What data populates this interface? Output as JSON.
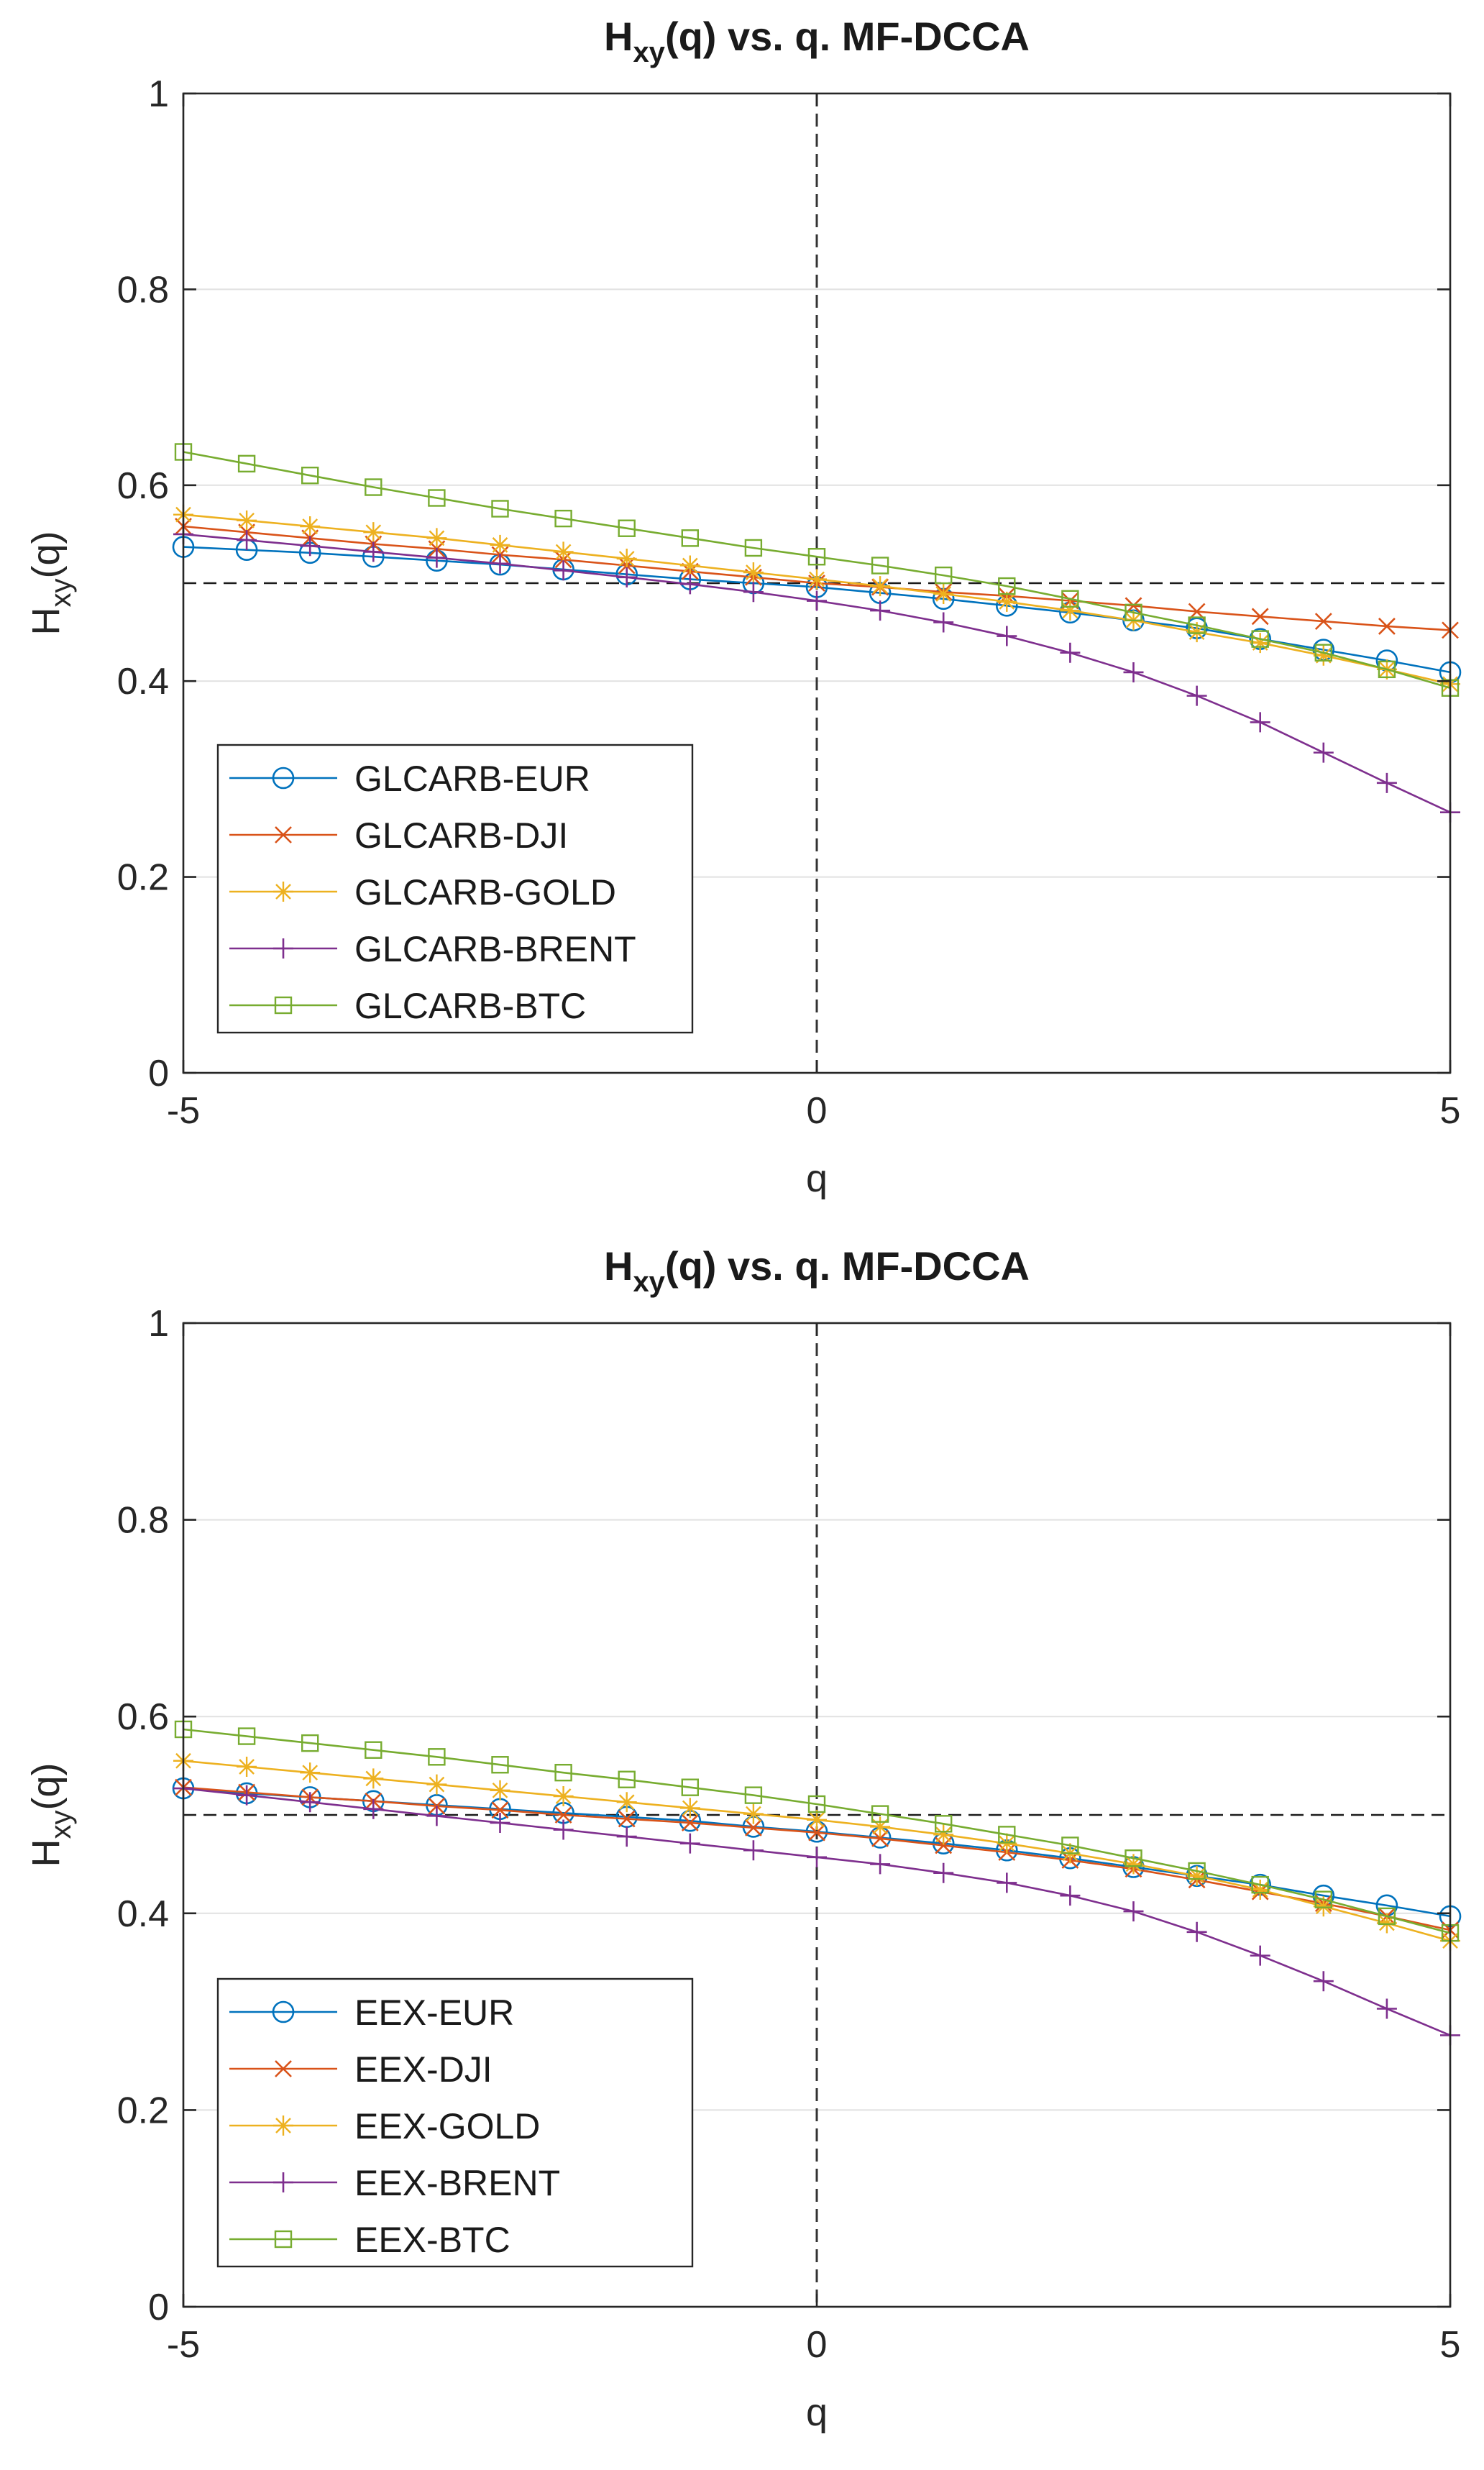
{
  "chart_data": [
    {
      "type": "line",
      "title_main": "H",
      "title_sub": "xy",
      "title_rest": "(q) vs. q. MF-DCCA",
      "xlabel": "q",
      "ylabel_main": "H",
      "ylabel_sub": "xy",
      "ylabel_rest": "(q)",
      "xlim": [
        -5,
        5
      ],
      "ylim": [
        0,
        1
      ],
      "xticks": [
        -5,
        0,
        5
      ],
      "yticks": [
        0,
        0.2,
        0.4,
        0.6,
        0.8,
        1
      ],
      "xtick_labels": [
        "-5",
        "0",
        "5"
      ],
      "ytick_labels": [
        "0",
        "0.2",
        "0.4",
        "0.6",
        "0.8",
        "1"
      ],
      "grid": "horizontal",
      "reference_lines": {
        "vertical_x": 0,
        "horizontal_y": 0.5
      },
      "legend_position": "lower-left",
      "x": [
        -5,
        -4.5,
        -4,
        -3.5,
        -3,
        -2.5,
        -2,
        -1.5,
        -1,
        -0.5,
        0,
        0.5,
        1,
        1.5,
        2,
        2.5,
        3,
        3.5,
        4,
        4.5,
        5
      ],
      "series": [
        {
          "name": "GLCARB-EUR",
          "color": "#0072BD",
          "marker": "circle",
          "values": [
            0.537,
            0.534,
            0.531,
            0.527,
            0.523,
            0.519,
            0.514,
            0.509,
            0.504,
            0.5,
            0.496,
            0.49,
            0.484,
            0.477,
            0.47,
            0.462,
            0.454,
            0.443,
            0.432,
            0.421,
            0.409
          ]
        },
        {
          "name": "GLCARB-DJI",
          "color": "#D95319",
          "marker": "x",
          "values": [
            0.558,
            0.552,
            0.546,
            0.54,
            0.535,
            0.529,
            0.524,
            0.518,
            0.512,
            0.506,
            0.5,
            0.496,
            0.491,
            0.487,
            0.482,
            0.477,
            0.471,
            0.466,
            0.461,
            0.456,
            0.452
          ]
        },
        {
          "name": "GLCARB-GOLD",
          "color": "#EDB120",
          "marker": "star",
          "values": [
            0.57,
            0.564,
            0.558,
            0.552,
            0.546,
            0.539,
            0.532,
            0.525,
            0.518,
            0.511,
            0.504,
            0.497,
            0.489,
            0.481,
            0.472,
            0.462,
            0.45,
            0.439,
            0.426,
            0.412,
            0.397
          ]
        },
        {
          "name": "GLCARB-BRENT",
          "color": "#7E2F8E",
          "marker": "plus",
          "values": [
            0.55,
            0.544,
            0.538,
            0.532,
            0.526,
            0.52,
            0.513,
            0.506,
            0.499,
            0.491,
            0.482,
            0.472,
            0.46,
            0.446,
            0.429,
            0.409,
            0.385,
            0.358,
            0.327,
            0.296,
            0.266
          ]
        },
        {
          "name": "GLCARB-BTC",
          "color": "#77AC30",
          "marker": "square",
          "values": [
            0.634,
            0.622,
            0.61,
            0.598,
            0.587,
            0.576,
            0.566,
            0.556,
            0.546,
            0.536,
            0.527,
            0.518,
            0.508,
            0.497,
            0.484,
            0.47,
            0.457,
            0.443,
            0.429,
            0.412,
            0.393
          ]
        }
      ]
    },
    {
      "type": "line",
      "title_main": "H",
      "title_sub": "xy",
      "title_rest": "(q) vs. q. MF-DCCA",
      "xlabel": "q",
      "ylabel_main": "H",
      "ylabel_sub": "xy",
      "ylabel_rest": "(q)",
      "xlim": [
        -5,
        5
      ],
      "ylim": [
        0,
        1
      ],
      "xticks": [
        -5,
        0,
        5
      ],
      "yticks": [
        0,
        0.2,
        0.4,
        0.6,
        0.8,
        1
      ],
      "xtick_labels": [
        "-5",
        "0",
        "5"
      ],
      "ytick_labels": [
        "0",
        "0.2",
        "0.4",
        "0.6",
        "0.8",
        "1"
      ],
      "grid": "horizontal",
      "reference_lines": {
        "vertical_x": 0,
        "horizontal_y": 0.5
      },
      "legend_position": "lower-left",
      "x": [
        -5,
        -4.5,
        -4,
        -3.5,
        -3,
        -2.5,
        -2,
        -1.5,
        -1,
        -0.5,
        0,
        0.5,
        1,
        1.5,
        2,
        2.5,
        3,
        3.5,
        4,
        4.5,
        5
      ],
      "series": [
        {
          "name": "EEX-EUR",
          "color": "#0072BD",
          "marker": "circle",
          "values": [
            0.527,
            0.522,
            0.518,
            0.514,
            0.51,
            0.506,
            0.502,
            0.498,
            0.494,
            0.488,
            0.483,
            0.477,
            0.471,
            0.464,
            0.456,
            0.447,
            0.438,
            0.429,
            0.418,
            0.408,
            0.397
          ]
        },
        {
          "name": "EEX-DJI",
          "color": "#D95319",
          "marker": "x",
          "values": [
            0.528,
            0.523,
            0.518,
            0.514,
            0.509,
            0.505,
            0.5,
            0.496,
            0.492,
            0.487,
            0.482,
            0.476,
            0.469,
            0.462,
            0.454,
            0.445,
            0.434,
            0.422,
            0.41,
            0.397,
            0.383
          ]
        },
        {
          "name": "EEX-GOLD",
          "color": "#EDB120",
          "marker": "star",
          "values": [
            0.555,
            0.549,
            0.543,
            0.537,
            0.531,
            0.525,
            0.519,
            0.513,
            0.507,
            0.501,
            0.495,
            0.488,
            0.48,
            0.471,
            0.461,
            0.45,
            0.438,
            0.424,
            0.407,
            0.39,
            0.372
          ]
        },
        {
          "name": "EEX-BRENT",
          "color": "#7E2F8E",
          "marker": "plus",
          "values": [
            0.527,
            0.52,
            0.513,
            0.506,
            0.499,
            0.492,
            0.485,
            0.478,
            0.471,
            0.464,
            0.457,
            0.45,
            0.441,
            0.431,
            0.418,
            0.402,
            0.381,
            0.357,
            0.331,
            0.303,
            0.276
          ]
        },
        {
          "name": "EEX-BTC",
          "color": "#77AC30",
          "marker": "square",
          "values": [
            0.587,
            0.58,
            0.573,
            0.566,
            0.559,
            0.551,
            0.543,
            0.536,
            0.528,
            0.52,
            0.511,
            0.501,
            0.491,
            0.48,
            0.469,
            0.456,
            0.443,
            0.429,
            0.414,
            0.397,
            0.38
          ]
        }
      ]
    }
  ]
}
